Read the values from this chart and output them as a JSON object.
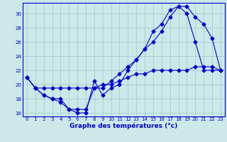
{
  "xlabel": "Graphe des températures (°c)",
  "bg_color": "#cce8e8",
  "grid_color": "#99cccc",
  "line_color": "#0000cc",
  "ylim": [
    15.5,
    31.5
  ],
  "xlim": [
    -0.5,
    23.5
  ],
  "yticks": [
    16,
    18,
    20,
    22,
    24,
    26,
    28,
    30
  ],
  "xticks": [
    0,
    1,
    2,
    3,
    4,
    5,
    6,
    7,
    8,
    9,
    10,
    11,
    12,
    13,
    14,
    15,
    16,
    17,
    18,
    19,
    20,
    21,
    22,
    23
  ],
  "line1_x": [
    0,
    1,
    2,
    3,
    4,
    5,
    6,
    7,
    8,
    9,
    10,
    11,
    12,
    13,
    14,
    15,
    16,
    17,
    18,
    19,
    20,
    21,
    22,
    23
  ],
  "line1_y": [
    21.0,
    19.5,
    18.5,
    18.0,
    17.5,
    16.5,
    16.0,
    16.0,
    20.5,
    18.5,
    19.5,
    20.0,
    22.0,
    23.5,
    25.0,
    27.5,
    28.5,
    30.5,
    31.0,
    30.0,
    26.0,
    22.0,
    22.0,
    22.0
  ],
  "line2_x": [
    0,
    1,
    2,
    3,
    4,
    5,
    6,
    7,
    8,
    9,
    10,
    11,
    12,
    13,
    14,
    15,
    16,
    17,
    18,
    19,
    20,
    21,
    22,
    23
  ],
  "line2_y": [
    21.0,
    19.5,
    18.5,
    18.0,
    18.0,
    16.5,
    16.5,
    16.5,
    19.5,
    19.5,
    20.5,
    21.5,
    22.5,
    23.5,
    25.0,
    26.0,
    27.5,
    29.5,
    31.0,
    31.0,
    29.5,
    28.5,
    26.5,
    22.0
  ],
  "line3_x": [
    0,
    1,
    2,
    3,
    4,
    5,
    6,
    7,
    8,
    9,
    10,
    11,
    12,
    13,
    14,
    15,
    16,
    17,
    18,
    19,
    20,
    21,
    22,
    23
  ],
  "line3_y": [
    21.0,
    19.5,
    19.5,
    19.5,
    19.5,
    19.5,
    19.5,
    19.5,
    19.5,
    20.0,
    20.0,
    20.5,
    21.0,
    21.5,
    21.5,
    22.0,
    22.0,
    22.0,
    22.0,
    22.0,
    22.5,
    22.5,
    22.5,
    22.0
  ]
}
